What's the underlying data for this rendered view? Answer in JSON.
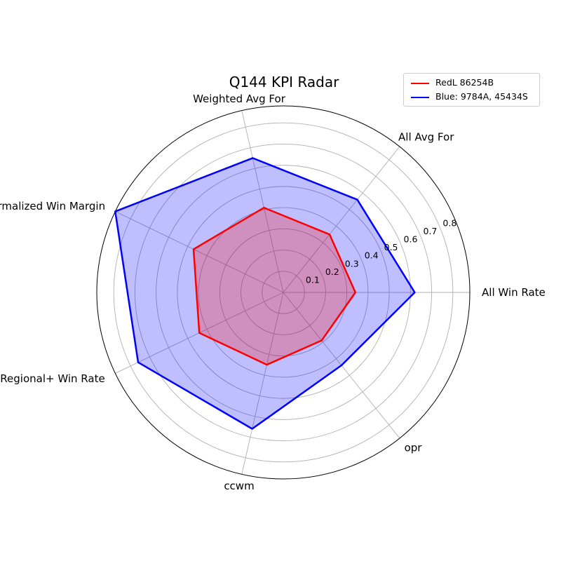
{
  "chart_data": {
    "type": "radar",
    "title": "Q144 KPI Radar",
    "categories": [
      "All Win Rate",
      "All Avg For",
      "Weighted Avg For",
      "Weighted Normalized Win Margin",
      "Regional+ Win Rate",
      "ccwm",
      "opr"
    ],
    "rlim": [
      0,
      0.88
    ],
    "rticks": [
      0.1,
      0.2,
      0.3,
      0.4,
      0.5,
      0.6,
      0.7,
      0.8
    ],
    "rtick_labels": [
      "0.1",
      "0.2",
      "0.3",
      "0.4",
      "0.5",
      "0.6",
      "0.7",
      "0.8"
    ],
    "grid": true,
    "legend_position": "top-right",
    "series": [
      {
        "name": "RedL 86254B",
        "color": "#ff0000",
        "fill": false,
        "values": [
          0.34,
          0.35,
          0.41,
          0.47,
          0.44,
          0.35,
          0.29
        ]
      },
      {
        "name": "Blue: 9784A, 45434S",
        "color": "#0000ff",
        "fill": true,
        "fill_color": "#0000ff",
        "values": [
          0.62,
          0.56,
          0.65,
          0.88,
          0.76,
          0.66,
          0.44
        ]
      }
    ]
  }
}
